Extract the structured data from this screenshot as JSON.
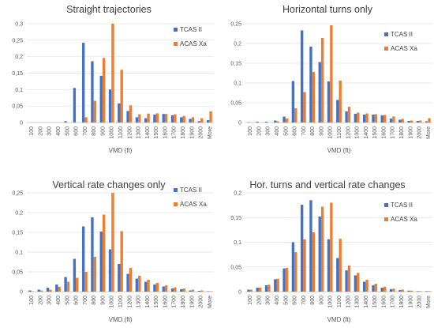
{
  "colors": {
    "tcas": "#4472C4",
    "acas": "#ED7D31"
  },
  "chart_data": [
    {
      "type": "bar",
      "title": "Straight trajectories",
      "xlabel": "VMD (ft)",
      "ylabel": "",
      "ylim": [
        0,
        0.3
      ],
      "yticks": [
        "0",
        "0,05",
        "0,1",
        "0,15",
        "0,2",
        "0,25",
        "0,3"
      ],
      "categories": [
        "100",
        "200",
        "300",
        "400",
        "500",
        "600",
        "700",
        "800",
        "900",
        "1000",
        "1100",
        "1200",
        "1300",
        "1400",
        "1500",
        "1600",
        "1700",
        "1800",
        "1900",
        "2000",
        "More"
      ],
      "legend": "right",
      "series": [
        {
          "name": "TCAS II",
          "values": [
            0,
            0,
            0,
            0,
            0.004,
            0.105,
            0.242,
            0.186,
            0.142,
            0.1,
            0.058,
            0.035,
            0.016,
            0.013,
            0.024,
            0.026,
            0.022,
            0.016,
            0.011,
            0.004,
            0.007
          ]
        },
        {
          "name": "ACAS Xa",
          "values": [
            0,
            0,
            0,
            0,
            0,
            0,
            0.016,
            0.066,
            0.196,
            0.3,
            0.16,
            0.052,
            0.025,
            0.027,
            0.028,
            0.026,
            0.025,
            0.02,
            0.016,
            0.013,
            0.034
          ]
        }
      ]
    },
    {
      "type": "bar",
      "title": "Horizontal turns only",
      "xlabel": "VMD (ft)",
      "ylabel": "",
      "ylim": [
        0,
        0.25
      ],
      "yticks": [
        "0",
        "0,05",
        "0,1",
        "0,15",
        "0,2",
        "0,25"
      ],
      "categories": [
        "100",
        "200",
        "300",
        "400",
        "500",
        "600",
        "700",
        "800",
        "900",
        "1000",
        "1100",
        "1200",
        "1300",
        "1400",
        "1500",
        "1600",
        "1700",
        "1800",
        "1900",
        "2000",
        "More"
      ],
      "legend": "right",
      "series": [
        {
          "name": "TCAS II",
          "values": [
            0.001,
            0.002,
            0.002,
            0.005,
            0.015,
            0.105,
            0.233,
            0.192,
            0.153,
            0.104,
            0.057,
            0.028,
            0.022,
            0.02,
            0.02,
            0.018,
            0.01,
            0.007,
            0.004,
            0.004,
            0.003
          ]
        },
        {
          "name": "ACAS Xa",
          "values": [
            0,
            0,
            0,
            0.003,
            0.01,
            0.036,
            0.077,
            0.128,
            0.214,
            0.246,
            0.106,
            0.04,
            0.025,
            0.023,
            0.021,
            0.019,
            0.015,
            0.009,
            0.005,
            0.005,
            0.011
          ]
        }
      ]
    },
    {
      "type": "bar",
      "title": "Vertical rate changes only",
      "xlabel": "VMD (ft)",
      "ylabel": "",
      "ylim": [
        0,
        0.25
      ],
      "yticks": [
        "0",
        "0,05",
        "0,1",
        "0,15",
        "0,2",
        "0,25"
      ],
      "categories": [
        "100",
        "200",
        "300",
        "400",
        "500",
        "600",
        "700",
        "800",
        "900",
        "1000",
        "1100",
        "1200",
        "1300",
        "1400",
        "1500",
        "1600",
        "1700",
        "1800",
        "1900",
        "2000",
        "More"
      ],
      "legend": "right",
      "series": [
        {
          "name": "TCAS II",
          "values": [
            0.003,
            0.005,
            0.01,
            0.018,
            0.037,
            0.083,
            0.165,
            0.188,
            0.152,
            0.107,
            0.07,
            0.045,
            0.033,
            0.025,
            0.018,
            0.013,
            0.008,
            0.006,
            0.003,
            0.002,
            0.001
          ]
        },
        {
          "name": "ACAS Xa",
          "values": [
            0.001,
            0.003,
            0.005,
            0.012,
            0.025,
            0.035,
            0.05,
            0.088,
            0.195,
            0.25,
            0.153,
            0.06,
            0.04,
            0.03,
            0.022,
            0.016,
            0.011,
            0.008,
            0.005,
            0.003,
            0.001
          ]
        }
      ]
    },
    {
      "type": "bar",
      "title": "Hor. turns and vertical rate changes",
      "xlabel": "VMD (ft)",
      "ylabel": "",
      "ylim": [
        0,
        0.2
      ],
      "yticks": [
        "0",
        "0,05",
        "0,1",
        "0,15",
        "0,2"
      ],
      "categories": [
        "100",
        "200",
        "300",
        "400",
        "500",
        "600",
        "700",
        "800",
        "900",
        "1000",
        "1100",
        "1200",
        "1300",
        "1400",
        "1500",
        "1600",
        "1700",
        "1800",
        "1900",
        "2000",
        "More"
      ],
      "legend": "right",
      "series": [
        {
          "name": "TCAS II",
          "values": [
            0.004,
            0.008,
            0.013,
            0.025,
            0.047,
            0.1,
            0.176,
            0.185,
            0.152,
            0.106,
            0.068,
            0.043,
            0.033,
            0.02,
            0.013,
            0.008,
            0.005,
            0.003,
            0.002,
            0.001,
            0.001
          ]
        },
        {
          "name": "ACAS Xa",
          "values": [
            0.004,
            0.008,
            0.014,
            0.026,
            0.048,
            0.08,
            0.106,
            0.12,
            0.172,
            0.18,
            0.107,
            0.053,
            0.038,
            0.024,
            0.016,
            0.01,
            0.006,
            0.004,
            0.002,
            0.001,
            0.001
          ]
        }
      ]
    }
  ]
}
